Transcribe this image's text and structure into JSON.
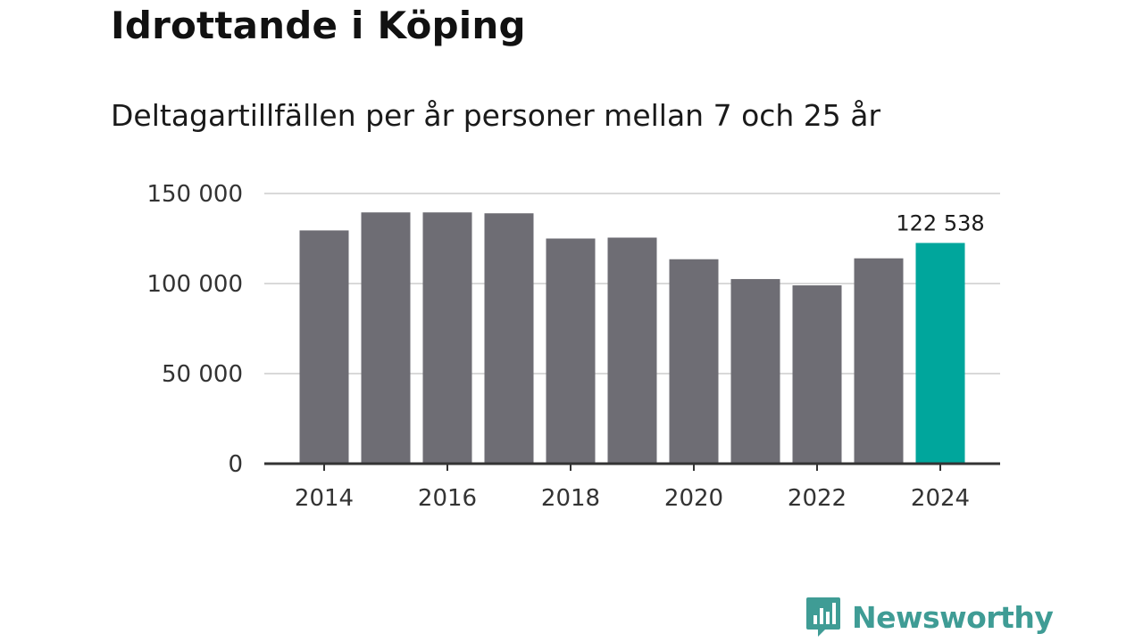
{
  "chart_data": {
    "type": "bar",
    "title": "Idrottande i Köping",
    "subtitle": "Deltagartillfällen per år personer mellan 7 och 25 år",
    "categories": [
      "2014",
      "2015",
      "2016",
      "2017",
      "2018",
      "2019",
      "2020",
      "2021",
      "2022",
      "2023",
      "2024"
    ],
    "values": [
      129500,
      139500,
      139500,
      139000,
      125000,
      125500,
      113500,
      102500,
      99000,
      114000,
      122538
    ],
    "highlight_index": 10,
    "highlight_label": "122 538",
    "x_tick_labels": [
      "2014",
      "2016",
      "2018",
      "2020",
      "2022",
      "2024"
    ],
    "y_ticks": [
      0,
      50000,
      100000,
      150000
    ],
    "y_tick_labels": [
      "0",
      "50 000",
      "100 000",
      "150 000"
    ],
    "ylim": [
      0,
      150000
    ],
    "xlabel": "",
    "ylabel": "",
    "grid": true,
    "colors": {
      "bar": "#6e6d74",
      "highlight": "#00a69c",
      "grid": "#d9d9d9",
      "axis": "#333333"
    }
  },
  "brand": {
    "name": "Newsworthy",
    "logo": "newsworthy-logo-icon",
    "color": "#3f9c95"
  }
}
